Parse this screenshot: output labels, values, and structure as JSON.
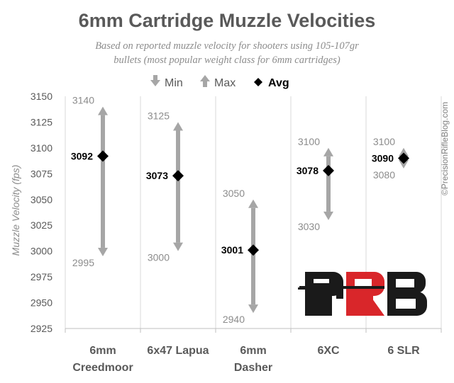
{
  "watermark": "©PrecisionRifleBlog.com",
  "logo_text": "PRB",
  "colors": {
    "range": "#a6a6a6",
    "avg": "#000000",
    "text": "#595959",
    "logo_dark": "#1a1a1a",
    "logo_red": "#d9262a"
  },
  "chart_data": {
    "type": "range",
    "title": "6mm Cartridge Muzzle Velocities",
    "subtitle": [
      "Based on reported muzzle velocity for shooters using 105-107gr",
      "bullets (most popular weight class for 6mm cartridges)"
    ],
    "ylabel": "Muzzle Velocity (fps)",
    "xlabel": "",
    "ylim": [
      2925,
      3150
    ],
    "yticks": [
      2925,
      2950,
      2975,
      3000,
      3025,
      3050,
      3075,
      3100,
      3125,
      3150
    ],
    "grid": "vertical",
    "legend": {
      "position": "top",
      "entries": [
        {
          "symbol": "down-arrow",
          "label": "Min"
        },
        {
          "symbol": "up-arrow",
          "label": "Max"
        },
        {
          "symbol": "diamond",
          "label": "Avg"
        }
      ]
    },
    "categories": [
      "6mm Creedmoor",
      "6x47 Lapua",
      "6mm Dasher",
      "6XC",
      "6 SLR"
    ],
    "category_lines": [
      [
        "6mm",
        "Creedmoor"
      ],
      [
        "6x47 Lapua"
      ],
      [
        "6mm",
        "Dasher"
      ],
      [
        "6XC"
      ],
      [
        "6 SLR"
      ]
    ],
    "series": [
      {
        "name": "Min",
        "values": [
          2995,
          3000,
          2940,
          3030,
          3080
        ]
      },
      {
        "name": "Max",
        "values": [
          3140,
          3125,
          3050,
          3100,
          3100
        ]
      },
      {
        "name": "Avg",
        "values": [
          3092,
          3073,
          3001,
          3078,
          3090
        ]
      }
    ]
  }
}
